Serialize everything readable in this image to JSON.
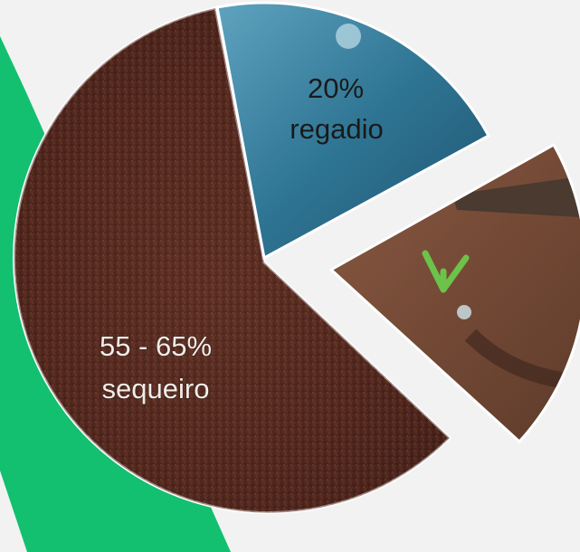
{
  "slices": [
    {
      "value_text": "20%",
      "label": "regadio"
    },
    {
      "value_text": "55 - 65%",
      "label": "sequeiro"
    }
  ]
}
